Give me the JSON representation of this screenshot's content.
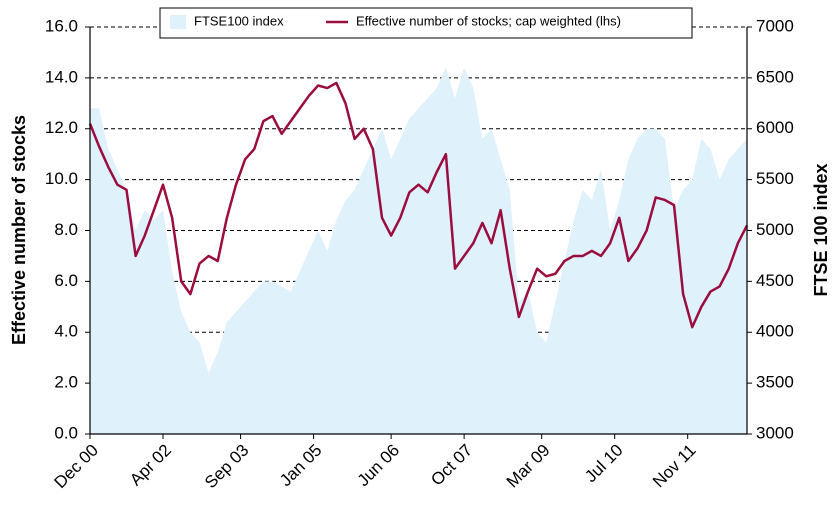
{
  "chart_data": {
    "type": "line",
    "y_label": "Effective number of stocks",
    "y2_label": "FTSE 100 index",
    "x": [
      "2000-12",
      "2001-02",
      "2001-04",
      "2001-06",
      "2001-08",
      "2001-10",
      "2001-12",
      "2002-02",
      "2002-04",
      "2002-06",
      "2002-08",
      "2002-10",
      "2002-12",
      "2003-02",
      "2003-04",
      "2003-06",
      "2003-08",
      "2003-10",
      "2003-12",
      "2004-02",
      "2004-04",
      "2004-06",
      "2004-08",
      "2004-10",
      "2004-12",
      "2005-02",
      "2005-04",
      "2005-06",
      "2005-08",
      "2005-10",
      "2005-12",
      "2006-02",
      "2006-04",
      "2006-06",
      "2006-08",
      "2006-10",
      "2006-12",
      "2007-02",
      "2007-04",
      "2007-06",
      "2007-08",
      "2007-10",
      "2007-12",
      "2008-02",
      "2008-04",
      "2008-06",
      "2008-08",
      "2008-10",
      "2008-12",
      "2009-02",
      "2009-04",
      "2009-06",
      "2009-08",
      "2009-10",
      "2009-12",
      "2010-02",
      "2010-04",
      "2010-06",
      "2010-08",
      "2010-10",
      "2010-12",
      "2011-02",
      "2011-04",
      "2011-06",
      "2011-08",
      "2011-10",
      "2011-12",
      "2012-02",
      "2012-04",
      "2012-06",
      "2012-08",
      "2012-10",
      "2012-12"
    ],
    "xlim": [
      "2000-12",
      "2012-12"
    ],
    "xticks": [
      {
        "value": "2000-12",
        "label": "Dec 00"
      },
      {
        "value": "2002-04",
        "label": "Apr 02"
      },
      {
        "value": "2003-09",
        "label": "Sep 03"
      },
      {
        "value": "2005-01",
        "label": "Jan 05"
      },
      {
        "value": "2006-06",
        "label": "Jun 06"
      },
      {
        "value": "2007-10",
        "label": "Oct 07"
      },
      {
        "value": "2009-03",
        "label": "Mar 09"
      },
      {
        "value": "2010-07",
        "label": "Jul 10"
      },
      {
        "value": "2011-11",
        "label": "Nov 11"
      }
    ],
    "ylim": [
      0,
      16
    ],
    "yticks": [
      {
        "value": 0,
        "label": "0.0"
      },
      {
        "value": 2,
        "label": "2.0"
      },
      {
        "value": 4,
        "label": "4.0"
      },
      {
        "value": 6,
        "label": "6.0"
      },
      {
        "value": 8,
        "label": "8.0"
      },
      {
        "value": 10,
        "label": "10.0"
      },
      {
        "value": 12,
        "label": "12.0"
      },
      {
        "value": 14,
        "label": "14.0"
      },
      {
        "value": 16,
        "label": "16.0"
      }
    ],
    "y2lim": [
      3000,
      7000
    ],
    "y2ticks": [
      3000,
      3500,
      4000,
      4500,
      5000,
      5500,
      6000,
      6500,
      7000
    ],
    "grid": true,
    "series": [
      {
        "name": "FTSE100 index",
        "kind": "area",
        "axis": "y2",
        "color": "#dff1fb",
        "values": [
          6200,
          6200,
          5800,
          5600,
          5400,
          5000,
          5200,
          5100,
          5200,
          4600,
          4200,
          4000,
          3900,
          3600,
          3800,
          4100,
          4200,
          4300,
          4400,
          4500,
          4500,
          4450,
          4400,
          4600,
          4800,
          5000,
          4800,
          5100,
          5300,
          5400,
          5600,
          5800,
          6000,
          5700,
          5900,
          6100,
          6200,
          6300,
          6400,
          6600,
          6300,
          6600,
          6400,
          5900,
          6000,
          5700,
          5400,
          4300,
          4400,
          4000,
          3900,
          4300,
          4700,
          5100,
          5400,
          5300,
          5600,
          5000,
          5300,
          5700,
          5900,
          6000,
          6000,
          5900,
          5200,
          5400,
          5500,
          5900,
          5800,
          5500,
          5700,
          5800,
          5900
        ]
      },
      {
        "name": "Effective number of stocks; cap weighted (lhs)",
        "kind": "line",
        "axis": "y",
        "color": "#9b0d3f",
        "values": [
          12.2,
          11.3,
          10.5,
          9.8,
          9.6,
          7.0,
          7.8,
          8.8,
          9.8,
          8.5,
          6.0,
          5.5,
          6.7,
          7.0,
          6.8,
          8.5,
          9.8,
          10.8,
          11.2,
          12.3,
          12.5,
          11.8,
          12.3,
          12.8,
          13.3,
          13.7,
          13.6,
          13.8,
          13.0,
          11.6,
          12.0,
          11.2,
          8.5,
          7.8,
          8.5,
          9.5,
          9.8,
          9.5,
          10.3,
          11.0,
          6.5,
          7.0,
          7.5,
          8.3,
          7.5,
          8.8,
          6.5,
          4.6,
          5.6,
          6.5,
          6.2,
          6.3,
          6.8,
          7.0,
          7.0,
          7.2,
          7.0,
          7.5,
          8.5,
          6.8,
          7.3,
          8.0,
          9.3,
          9.2,
          9.0,
          5.5,
          4.2,
          5.0,
          5.6,
          5.8,
          6.5,
          7.5,
          8.2
        ]
      }
    ]
  }
}
